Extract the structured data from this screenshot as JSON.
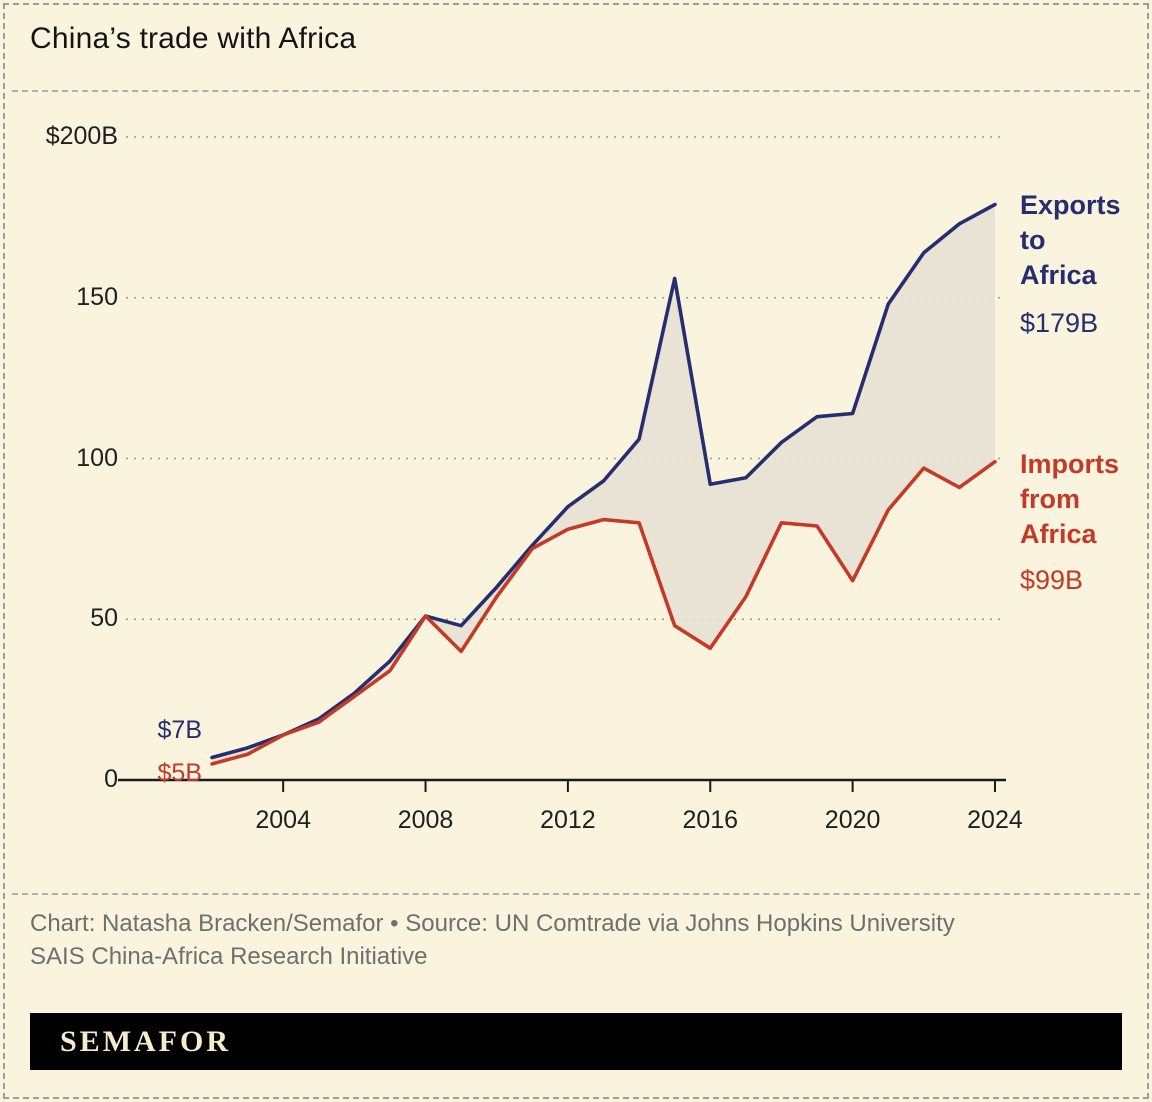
{
  "title": "China’s trade with Africa",
  "chart_data": {
    "type": "line",
    "x": [
      2002,
      2003,
      2004,
      2005,
      2006,
      2007,
      2008,
      2009,
      2010,
      2011,
      2012,
      2013,
      2014,
      2015,
      2016,
      2017,
      2018,
      2019,
      2020,
      2021,
      2022,
      2023,
      2024
    ],
    "series": [
      {
        "name": "Exports to Africa",
        "color": "#252e6e",
        "values": [
          7,
          10,
          14,
          19,
          27,
          37,
          51,
          48,
          60,
          73,
          85,
          93,
          106,
          156,
          92,
          94,
          105,
          113,
          114,
          148,
          164,
          173,
          179
        ]
      },
      {
        "name": "Imports from Africa",
        "color": "#c43a27",
        "values": [
          5,
          8,
          14,
          18,
          26,
          34,
          51,
          40,
          57,
          72,
          78,
          81,
          80,
          48,
          41,
          57,
          80,
          79,
          62,
          84,
          97,
          91,
          99
        ]
      }
    ],
    "title": "China’s trade with Africa",
    "xlabel": "",
    "ylabel": "",
    "ylim": [
      0,
      200
    ],
    "y_ticks": [
      {
        "label": "$200B",
        "value": 200
      },
      {
        "label": "150",
        "value": 150
      },
      {
        "label": "100",
        "value": 100
      },
      {
        "label": "50",
        "value": 50
      },
      {
        "label": "0",
        "value": 0
      }
    ],
    "x_ticks": [
      2004,
      2008,
      2012,
      2016,
      2020,
      2024
    ],
    "grid": "horizontal dashed",
    "legend_position": "right-annotations",
    "fill_between_color": "#e5e1d4"
  },
  "annotations": {
    "exports_start_value": "$7B",
    "imports_start_value": "$5B",
    "exports_label": "Exports\nto\nAfrica",
    "exports_end_value": "$179B",
    "imports_label": "Imports\nfrom\nAfrica",
    "imports_end_value": "$99B"
  },
  "footer": {
    "credit_line1": "Chart: Natasha Bracken/Semafor • Source: UN Comtrade via Johns Hopkins University",
    "credit_line2": "SAIS China-Africa Research Initiative",
    "logo_text": "SEMAFOR"
  }
}
